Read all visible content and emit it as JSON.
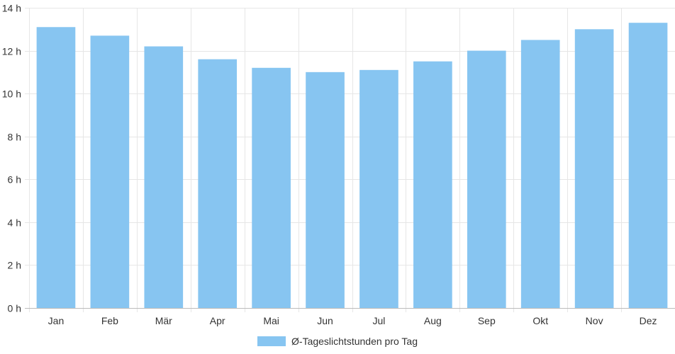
{
  "chart_data": {
    "type": "bar",
    "categories": [
      "Jan",
      "Feb",
      "Mär",
      "Apr",
      "Mai",
      "Jun",
      "Jul",
      "Aug",
      "Sep",
      "Okt",
      "Nov",
      "Dez"
    ],
    "series": [
      {
        "name": "Ø-Tageslichtstunden pro Tag",
        "values": [
          13.1,
          12.7,
          12.2,
          11.6,
          11.2,
          11.0,
          11.1,
          11.5,
          12.0,
          12.5,
          13.0,
          13.3
        ],
        "color": "#87C5F1"
      }
    ],
    "ylim": [
      0,
      14
    ],
    "yticks": [
      0,
      2,
      4,
      6,
      8,
      10,
      12,
      14
    ],
    "ytick_labels": [
      "0 h",
      "2 h",
      "4 h",
      "6 h",
      "8 h",
      "10 h",
      "12 h",
      "14 h"
    ],
    "grid": true,
    "legend_position": "bottom",
    "grid_color": "#e6e6e6",
    "axis_color": "#bbbbbb"
  }
}
